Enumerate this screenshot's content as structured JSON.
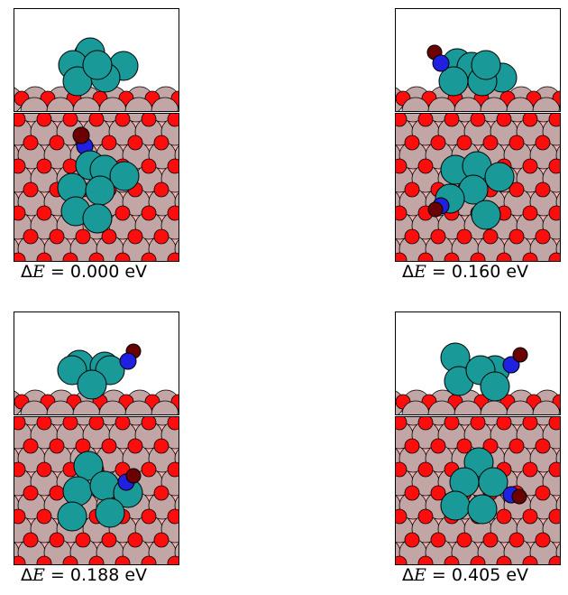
{
  "colors": {
    "frame_bg": "#ffffff",
    "top_bg": "#ffb3b3",
    "oxygen": "#ff0d0d",
    "metal_support": "#c2a6a6",
    "cluster": "#1a9999",
    "nitrogen": "#2020e0",
    "oxygen_adsorbate": "#6b0000"
  },
  "panels": [
    {
      "id": "p1",
      "label_prefix": "ΔE",
      "value": "0.000",
      "unit": "eV"
    },
    {
      "id": "p2",
      "label_prefix": "ΔE",
      "value": "0.160",
      "unit": "eV"
    },
    {
      "id": "p3",
      "label_prefix": "ΔE",
      "value": "0.188",
      "unit": "eV"
    },
    {
      "id": "p4",
      "label_prefix": "ΔE",
      "value": "0.405",
      "unit": "eV"
    }
  ]
}
